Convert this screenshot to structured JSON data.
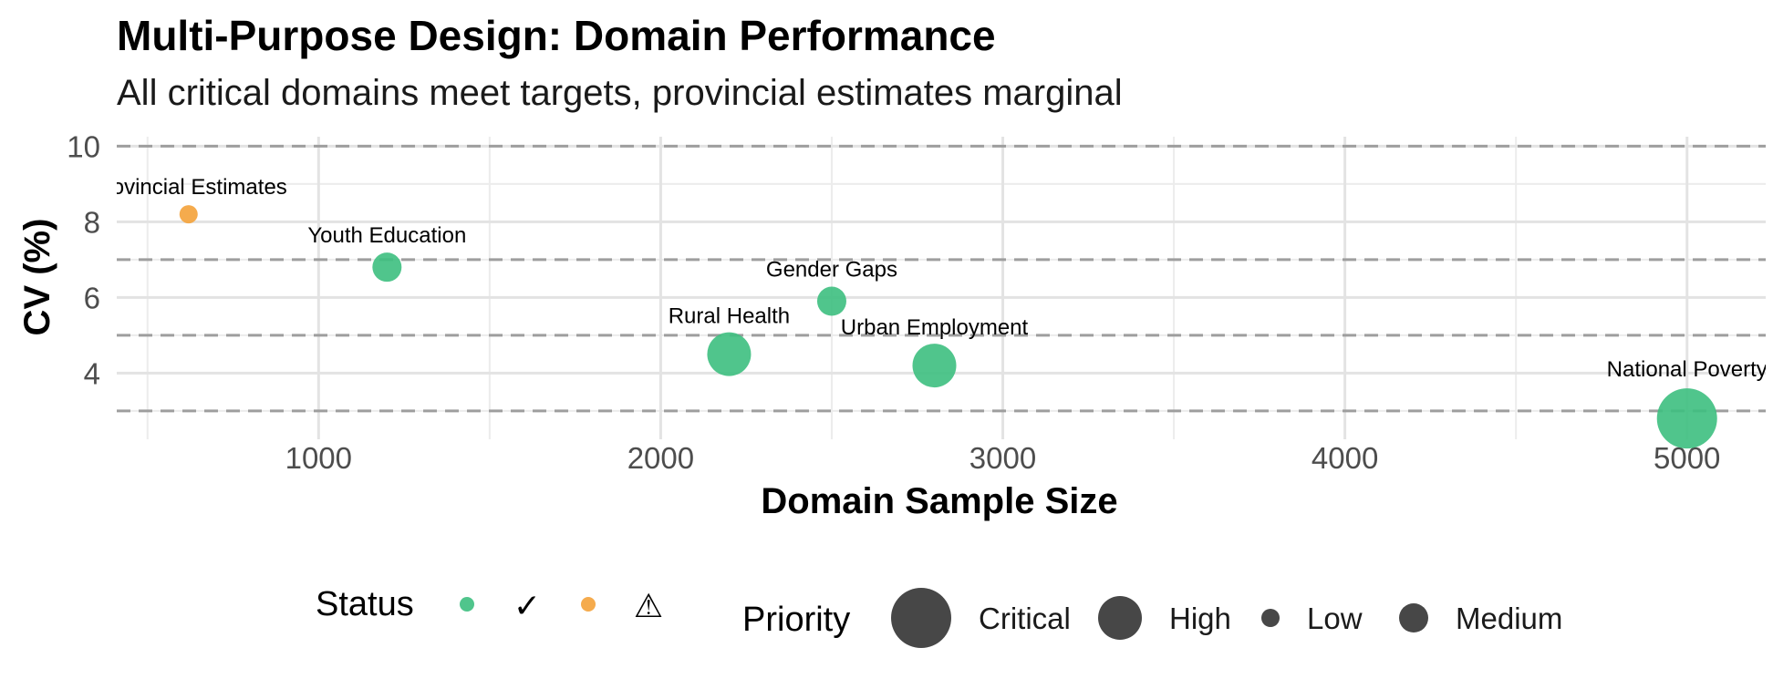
{
  "title": "Multi-Purpose Design: Domain Performance",
  "subtitle": "All critical domains meet targets, provincial estimates marginal",
  "chart_data": {
    "type": "scatter",
    "xlabel": "Domain Sample Size",
    "ylabel": "CV (%)",
    "xlim": [
      410,
      5230
    ],
    "ylim": [
      2.25,
      10.25
    ],
    "x_ticks": [
      1000,
      2000,
      3000,
      4000,
      5000
    ],
    "y_ticks": [
      4,
      6,
      8,
      10
    ],
    "reference_lines_y": [
      3,
      5,
      7,
      10
    ],
    "grid": true,
    "colors": {
      "ok": "#3dbf7f",
      "warning": "#f4a23a"
    },
    "points": [
      {
        "label": "National Poverty",
        "x": 5000,
        "y": 2.8,
        "status": "ok",
        "priority": "Critical"
      },
      {
        "label": "Urban Employment",
        "x": 2800,
        "y": 4.2,
        "status": "ok",
        "priority": "High"
      },
      {
        "label": "Rural Health",
        "x": 2200,
        "y": 4.5,
        "status": "ok",
        "priority": "High"
      },
      {
        "label": "Gender Gaps",
        "x": 2500,
        "y": 5.9,
        "status": "ok",
        "priority": "Medium"
      },
      {
        "label": "Youth Education",
        "x": 1200,
        "y": 6.8,
        "status": "ok",
        "priority": "Medium"
      },
      {
        "label": "Provincial Estimates",
        "x": 620,
        "y": 8.2,
        "status": "warning",
        "priority": "Low"
      }
    ],
    "legend": {
      "position": "bottom",
      "status_title": "Status",
      "status_items": [
        {
          "key": "ok",
          "symbol": "✓"
        },
        {
          "key": "warning",
          "symbol": "⚠"
        }
      ],
      "priority_title": "Priority",
      "priority_items": [
        "Critical",
        "High",
        "Low",
        "Medium"
      ]
    }
  }
}
